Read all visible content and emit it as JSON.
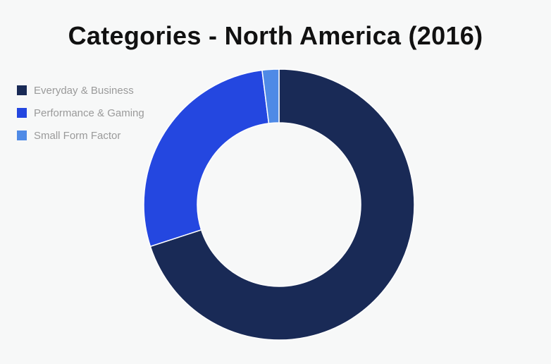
{
  "chart_data": {
    "type": "pie",
    "variant": "donut",
    "title": "Categories - North America (2016)",
    "legend_position": "top-left",
    "categories": [
      "Everyday & Business",
      "Performance & Gaming",
      "Small Form Factor"
    ],
    "values": [
      70,
      28,
      2
    ],
    "colors": [
      "#192a56",
      "#2447e0",
      "#4f8ae6"
    ],
    "start_angle_deg": 0,
    "direction": "clockwise"
  }
}
